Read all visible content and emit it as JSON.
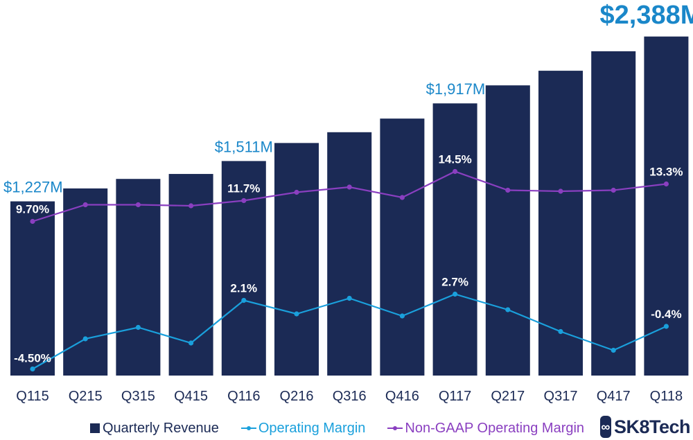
{
  "chart_data": {
    "type": "bar",
    "categories": [
      "Q115",
      "Q215",
      "Q315",
      "Q415",
      "Q116",
      "Q216",
      "Q316",
      "Q416",
      "Q117",
      "Q217",
      "Q317",
      "Q417",
      "Q118"
    ],
    "revenue_m": [
      1227,
      1318,
      1385,
      1420,
      1511,
      1638,
      1714,
      1810,
      1917,
      2044,
      2147,
      2284,
      2388
    ],
    "ylim_revenue": [
      0,
      2450
    ],
    "series": [
      {
        "name": "Operating Margin",
        "color": "#1aa0dc",
        "values": [
          -4.5,
          -1.6,
          -0.5,
          -2.0,
          2.1,
          0.8,
          2.3,
          0.6,
          2.7,
          1.2,
          -0.9,
          -2.7,
          -0.4
        ]
      },
      {
        "name": "Non-GAAP Operating Margin",
        "color": "#8a3fc0",
        "values": [
          9.7,
          11.3,
          11.3,
          11.2,
          11.7,
          12.5,
          13.0,
          12.0,
          14.5,
          12.7,
          12.6,
          12.7,
          13.3
        ]
      }
    ],
    "bar_labels": [
      {
        "index": 0,
        "text": "$1,227M",
        "style": "normal"
      },
      {
        "index": 4,
        "text": "$1,511M",
        "style": "normal"
      },
      {
        "index": 8,
        "text": "$1,917M",
        "style": "normal"
      },
      {
        "index": 12,
        "text": "$2,388M",
        "style": "big"
      }
    ],
    "point_labels": [
      {
        "series": 1,
        "index": 0,
        "text": "9.70%"
      },
      {
        "series": 1,
        "index": 4,
        "text": "11.7%"
      },
      {
        "series": 1,
        "index": 8,
        "text": "14.5%"
      },
      {
        "series": 1,
        "index": 12,
        "text": "13.3%"
      },
      {
        "series": 0,
        "index": 0,
        "text": "-4.50%"
      },
      {
        "series": 0,
        "index": 4,
        "text": "2.1%"
      },
      {
        "series": 0,
        "index": 8,
        "text": "2.7%"
      },
      {
        "series": 0,
        "index": 12,
        "text": "-0.4%"
      }
    ],
    "bar_color": "#1b2a55",
    "accent_color": "#1a87c9",
    "grid": false
  },
  "legend": {
    "bar_label": "Quarterly Revenue",
    "op_label": "Operating Margin",
    "ng_label": "Non-GAAP Operating Margin"
  },
  "logo": {
    "text": "SK8Tech",
    "icon": "sk8tech-logo-icon"
  }
}
